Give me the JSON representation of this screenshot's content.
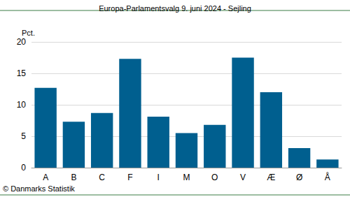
{
  "chart_data": {
    "type": "bar",
    "title": "Europa-Parlamentsvalg 9. juni 2024 - Sejling",
    "y_label": "Pct.",
    "annotations": [
      "© Danmarks Statistik"
    ],
    "categories": [
      "A",
      "B",
      "C",
      "F",
      "I",
      "M",
      "O",
      "V",
      "Æ",
      "Ø",
      "Å"
    ],
    "values": [
      12.7,
      7.3,
      8.7,
      17.3,
      8.1,
      5.5,
      6.8,
      17.5,
      12.0,
      3.1,
      1.3
    ],
    "color": "#005f8f",
    "ylim": [
      0,
      20
    ],
    "yticks": [
      0,
      5,
      10,
      15,
      20
    ],
    "grid": true
  }
}
